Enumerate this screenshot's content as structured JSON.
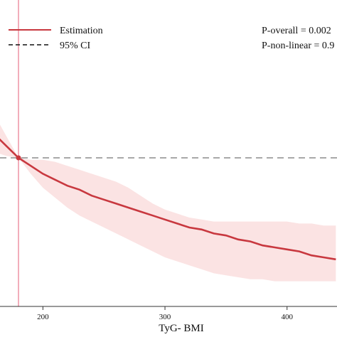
{
  "chart_data": {
    "type": "line",
    "xlabel": "TyG- BMI",
    "ylabel": "",
    "x_ticks": [
      200,
      300,
      400
    ],
    "x_range": [
      160,
      440
    ],
    "y_range": [
      0.38,
      1.62
    ],
    "reference_x": 180,
    "reference_y": 1.0,
    "grid": false,
    "legend_position": "top-left",
    "legend": [
      {
        "label": "Estimation",
        "style": "solid",
        "color": "#c8383f"
      },
      {
        "label": "95% CI",
        "style": "dashed",
        "color": "#111111"
      }
    ],
    "annotations": [
      "P-overall = 0.002",
      "P-non-linear = 0.9"
    ],
    "series": [
      {
        "name": "Estimation",
        "color": "#c8383f",
        "x": [
          160,
          170,
          180,
          190,
          200,
          210,
          220,
          230,
          240,
          250,
          260,
          270,
          280,
          290,
          300,
          310,
          320,
          330,
          340,
          350,
          360,
          370,
          380,
          390,
          400,
          410,
          420,
          430,
          440
        ],
        "y": [
          1.12,
          1.06,
          1.0,
          0.96,
          0.92,
          0.89,
          0.86,
          0.84,
          0.81,
          0.79,
          0.77,
          0.75,
          0.73,
          0.71,
          0.69,
          0.67,
          0.65,
          0.64,
          0.62,
          0.61,
          0.59,
          0.58,
          0.56,
          0.55,
          0.54,
          0.53,
          0.51,
          0.5,
          0.49
        ]
      }
    ],
    "ci": {
      "color": "#fbe3e3",
      "x": [
        160,
        170,
        180,
        190,
        200,
        210,
        220,
        230,
        240,
        250,
        260,
        270,
        280,
        290,
        300,
        310,
        320,
        330,
        340,
        350,
        360,
        370,
        380,
        390,
        400,
        410,
        420,
        430,
        440
      ],
      "lower": [
        1.03,
        1.01,
        1.0,
        0.92,
        0.85,
        0.8,
        0.75,
        0.71,
        0.68,
        0.65,
        0.62,
        0.59,
        0.56,
        0.53,
        0.5,
        0.48,
        0.46,
        0.44,
        0.42,
        0.41,
        0.4,
        0.39,
        0.39,
        0.38,
        0.38,
        0.38,
        0.38,
        0.38,
        0.38
      ],
      "upper": [
        1.22,
        1.11,
        1.0,
        0.99,
        0.99,
        0.98,
        0.96,
        0.94,
        0.92,
        0.9,
        0.88,
        0.85,
        0.81,
        0.77,
        0.74,
        0.72,
        0.7,
        0.69,
        0.68,
        0.68,
        0.68,
        0.68,
        0.68,
        0.68,
        0.68,
        0.67,
        0.67,
        0.66,
        0.66
      ]
    }
  }
}
